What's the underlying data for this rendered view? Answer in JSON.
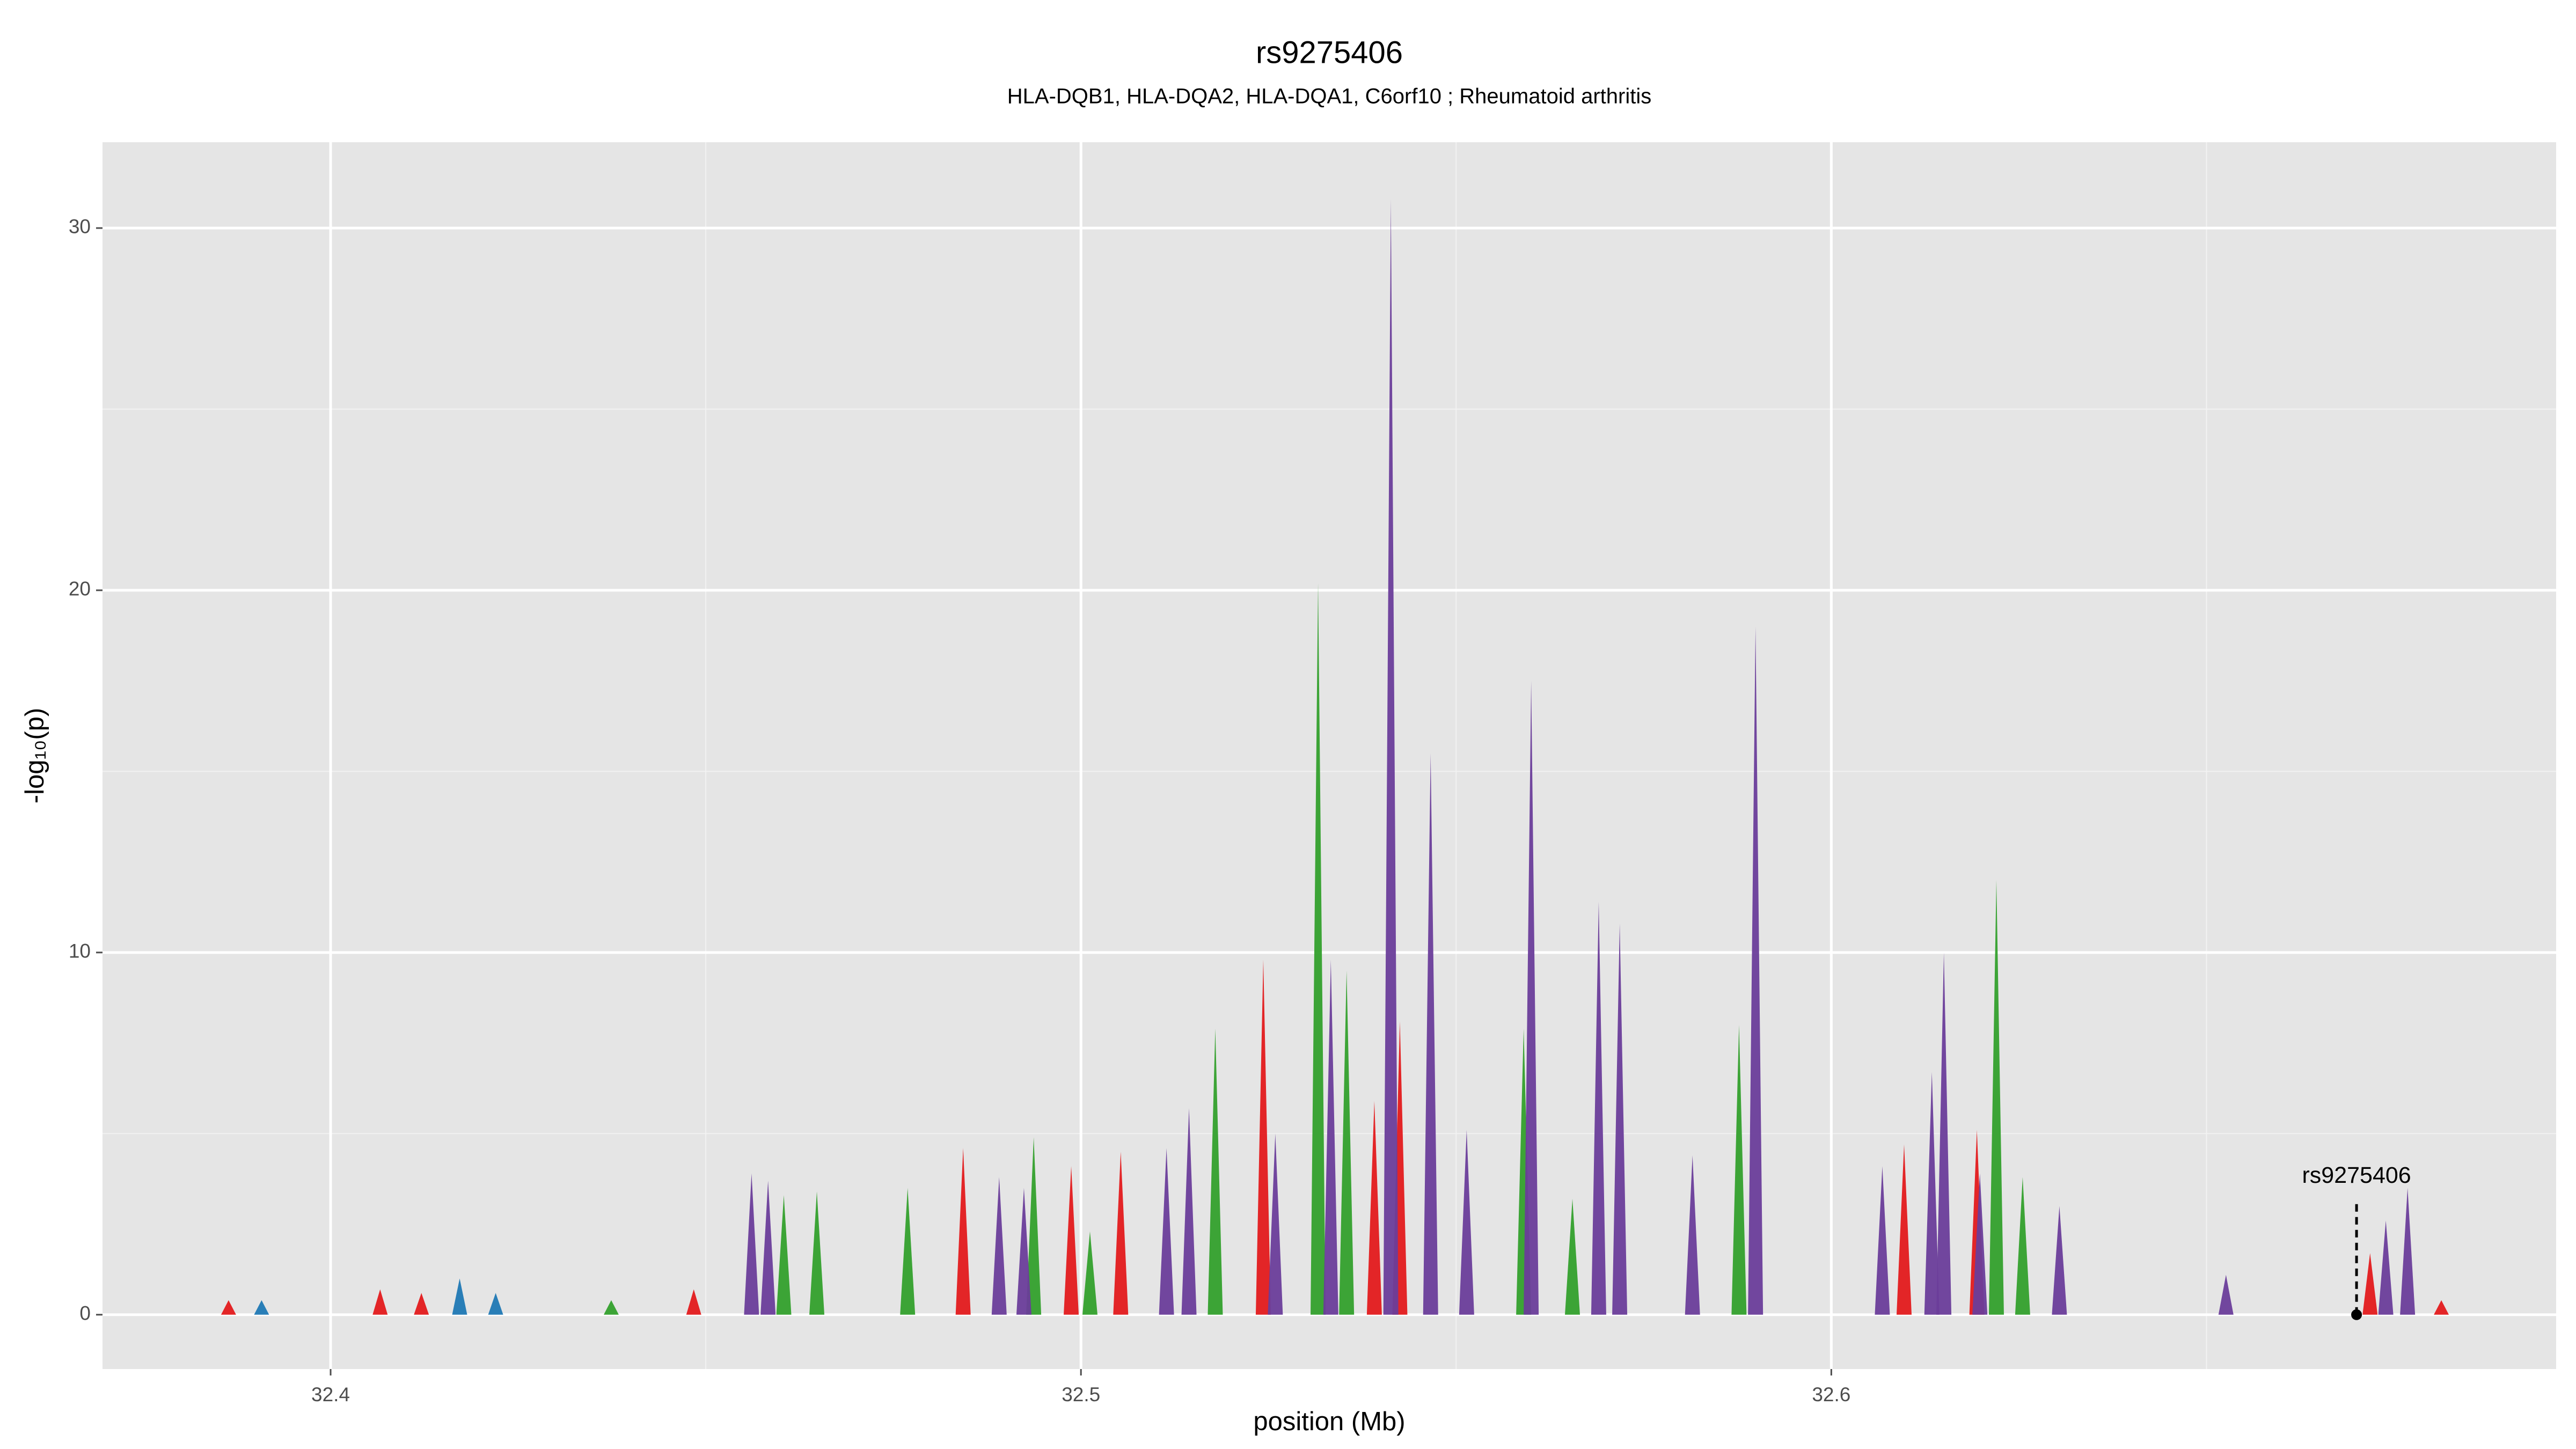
{
  "chart_data": {
    "type": "spike",
    "title": "rs9275406",
    "subtitle": "HLA-DQB1, HLA-DQA2, HLA-DQA1, C6orf10 ; Rheumatoid arthritis",
    "x_label": "position (Mb)",
    "y_label": "-log₁₀(p)",
    "xlim": [
      32.3696,
      32.6966
    ],
    "ylim": [
      -1.5,
      32.37
    ],
    "xticks": [
      32.4,
      32.5,
      32.6
    ],
    "yticks": [
      0,
      10,
      20,
      30
    ],
    "grid": true,
    "series": [
      {
        "color": "#33a02c",
        "x": [
          32.5316,
          32.5354,
          32.5179,
          32.559,
          32.5877,
          32.622,
          32.4937,
          32.4604,
          32.4648,
          32.4769,
          32.5655,
          32.6255,
          32.5012,
          32.4374
        ],
        "values": [
          20.2,
          9.5,
          7.9,
          7.9,
          8.0,
          12.0,
          4.9,
          3.3,
          3.4,
          3.5,
          3.2,
          3.8,
          2.3,
          0.4
        ]
      },
      {
        "color": "#e31a1c",
        "x": [
          32.5243,
          32.5425,
          32.5391,
          32.6097,
          32.6194,
          32.4843,
          32.4987,
          32.5053,
          32.3864,
          32.4066,
          32.4121,
          32.4484,
          32.6718,
          32.6813
        ],
        "values": [
          9.8,
          8.1,
          5.9,
          4.7,
          5.1,
          4.6,
          4.1,
          4.5,
          0.4,
          0.7,
          0.6,
          0.7,
          1.7,
          0.4
        ]
      },
      {
        "color": "#1f78b4",
        "x": [
          32.4172,
          32.422,
          32.3908
        ],
        "values": [
          1.0,
          0.6,
          0.4
        ]
      },
      {
        "color": "#6a3d9a",
        "x": [
          32.5413,
          32.5466,
          32.56,
          32.569,
          32.5718,
          32.5899,
          32.615,
          32.6134,
          32.6068,
          32.5815,
          32.5514,
          32.5259,
          32.5144,
          32.5114,
          32.4561,
          32.4583,
          32.4891,
          32.4924,
          32.6739,
          32.6768,
          32.6526,
          32.6198,
          32.6304,
          32.5333
        ],
        "values": [
          30.8,
          15.5,
          17.5,
          11.4,
          10.8,
          19.0,
          10.0,
          6.7,
          4.1,
          4.4,
          5.1,
          5.0,
          5.7,
          4.6,
          3.9,
          3.7,
          3.8,
          3.5,
          2.6,
          3.5,
          1.1,
          3.9,
          3.0,
          9.8
        ]
      }
    ],
    "annotation": {
      "text": "rs9275406",
      "x": 32.67,
      "y": 0
    }
  }
}
